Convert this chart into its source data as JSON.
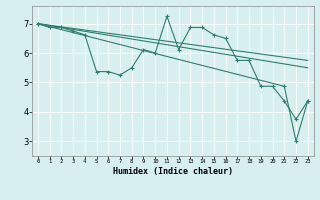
{
  "xlabel": "Humidex (Indice chaleur)",
  "bg_color": "#d8eff0",
  "grid_color": "#ffffff",
  "line_color": "#2e7d6e",
  "xlim": [
    -0.5,
    23.5
  ],
  "ylim": [
    2.5,
    7.6
  ],
  "xticks": [
    0,
    1,
    2,
    3,
    4,
    5,
    6,
    7,
    8,
    9,
    10,
    11,
    12,
    13,
    14,
    15,
    16,
    17,
    18,
    19,
    20,
    21,
    22,
    23
  ],
  "yticks": [
    3,
    4,
    5,
    6,
    7
  ],
  "line1_x": [
    0,
    1,
    2,
    3,
    4,
    5,
    6,
    7,
    8,
    9,
    10,
    11,
    12,
    13,
    14,
    15,
    16,
    17,
    18,
    19,
    20,
    21,
    22,
    23
  ],
  "line1_y": [
    7.0,
    6.87,
    6.87,
    6.75,
    6.62,
    5.37,
    5.37,
    5.25,
    5.5,
    6.12,
    6.0,
    7.25,
    6.12,
    6.87,
    6.87,
    6.62,
    6.5,
    5.75,
    5.75,
    4.87,
    4.87,
    4.37,
    3.75,
    4.37
  ],
  "line2_x": [
    0,
    23
  ],
  "line2_y": [
    7.0,
    5.5
  ],
  "line3_x": [
    0,
    23
  ],
  "line3_y": [
    7.0,
    5.75
  ],
  "line4_x": [
    0,
    21,
    22,
    23
  ],
  "line4_y": [
    7.0,
    4.87,
    3.0,
    4.37
  ]
}
